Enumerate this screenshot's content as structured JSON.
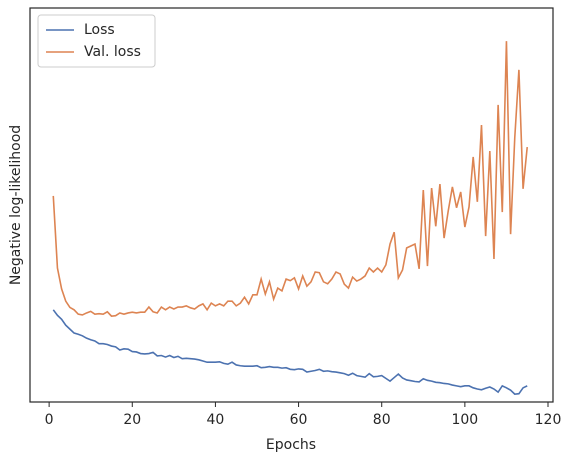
{
  "chart_data": {
    "type": "line",
    "xlabel": "Epochs",
    "ylabel": "Negative log-likelihood",
    "x": [
      1,
      2,
      3,
      4,
      5,
      6,
      7,
      8,
      9,
      10,
      11,
      12,
      13,
      14,
      15,
      16,
      17,
      18,
      19,
      20,
      21,
      22,
      23,
      24,
      25,
      26,
      27,
      28,
      29,
      30,
      31,
      32,
      33,
      34,
      35,
      36,
      37,
      38,
      39,
      40,
      41,
      42,
      43,
      44,
      45,
      46,
      47,
      48,
      49,
      50,
      51,
      52,
      53,
      54,
      55,
      56,
      57,
      58,
      59,
      60,
      61,
      62,
      63,
      64,
      65,
      66,
      67,
      68,
      69,
      70,
      71,
      72,
      73,
      74,
      75,
      76,
      77,
      78,
      79,
      80,
      81,
      82,
      83,
      84,
      85,
      86,
      87,
      88,
      89,
      90,
      91,
      92,
      93,
      94,
      95,
      96,
      97,
      98,
      99,
      100,
      101,
      102,
      103,
      104,
      105,
      106,
      107,
      108,
      109,
      110,
      111,
      112,
      113,
      114,
      115
    ],
    "series": [
      {
        "name": "Loss",
        "color": "#4c72b0",
        "values": [
          23.4,
          22,
          21,
          19.5,
          18.5,
          17.5,
          17.2,
          16.8,
          16.2,
          15.8,
          15.5,
          14.8,
          14.8,
          14.6,
          14.2,
          14.0,
          13.2,
          13.5,
          13.4,
          12.8,
          12.7,
          12.3,
          12.2,
          12.3,
          12.6,
          11.7,
          11.8,
          11.4,
          11.8,
          11.3,
          11.6,
          11.0,
          11.1,
          11.0,
          10.9,
          10.7,
          10.4,
          10.1,
          10.1,
          10.1,
          10.2,
          9.8,
          9.6,
          10.1,
          9.4,
          9.2,
          9.1,
          9.1,
          9.1,
          9.2,
          8.7,
          8.8,
          9.0,
          8.8,
          8.8,
          8.6,
          8.7,
          8.3,
          8.2,
          8.4,
          8.3,
          7.6,
          7.8,
          8.0,
          8.3,
          7.8,
          7.9,
          7.7,
          7.6,
          7.4,
          7.2,
          6.8,
          7.3,
          6.7,
          6.5,
          6.3,
          7.2,
          6.4,
          6.5,
          6.7,
          6.0,
          5.3,
          6.2,
          7.1,
          6.1,
          5.6,
          5.4,
          5.2,
          5.1,
          5.9,
          5.5,
          5.3,
          5.0,
          4.9,
          4.7,
          4.6,
          4.3,
          4.1,
          3.9,
          4.1,
          4.1,
          3.6,
          3.3,
          3.1,
          3.5,
          3.8,
          3.3,
          2.5,
          4.1,
          3.6,
          3.0,
          2.0,
          2.1,
          3.6,
          4.1
        ]
      },
      {
        "name": "Val. loss",
        "color": "#dd8452",
        "values": [
          52.3,
          34.0,
          28.7,
          25.6,
          24.0,
          23.4,
          22.3,
          22.1,
          22.6,
          23.0,
          22.3,
          22.4,
          22.3,
          22.9,
          21.8,
          21.9,
          22.6,
          22.3,
          22.6,
          22.8,
          22.6,
          22.8,
          22.8,
          24.1,
          22.9,
          22.6,
          24.1,
          23.4,
          24.1,
          23.6,
          24.1,
          24.1,
          24.4,
          23.9,
          23.6,
          24.4,
          24.9,
          23.4,
          25.1,
          24.4,
          24.9,
          24.4,
          25.6,
          25.6,
          24.4,
          25.1,
          26.6,
          24.9,
          27.2,
          27.2,
          31.2,
          27.4,
          30.5,
          26.1,
          28.9,
          28.2,
          31.2,
          30.8,
          31.5,
          28.7,
          32.0,
          29.4,
          30.5,
          33.0,
          32.8,
          30.5,
          30.0,
          31.2,
          33.0,
          32.5,
          29.9,
          28.9,
          31.7,
          30.7,
          31.2,
          32.0,
          34.0,
          33.0,
          34.0,
          33.0,
          34.8,
          40.1,
          43.1,
          31.5,
          33.5,
          39.1,
          39.6,
          40.1,
          33.8,
          53.8,
          34.5,
          54.3,
          44.6,
          55.3,
          41.6,
          48.5,
          54.6,
          49.3,
          53.3,
          44.4,
          49.5,
          62.2,
          50.8,
          70.3,
          42.1,
          63.7,
          36.3,
          75.4,
          48.2,
          91.6,
          42.6,
          67.0,
          84.3,
          54.1,
          64.7
        ]
      }
    ],
    "xlim": [
      -4.6,
      121.2
    ],
    "xticks": [
      0,
      20,
      40,
      60,
      80,
      100,
      120
    ],
    "ylim": [
      0,
      100
    ],
    "legend": "upper left"
  }
}
